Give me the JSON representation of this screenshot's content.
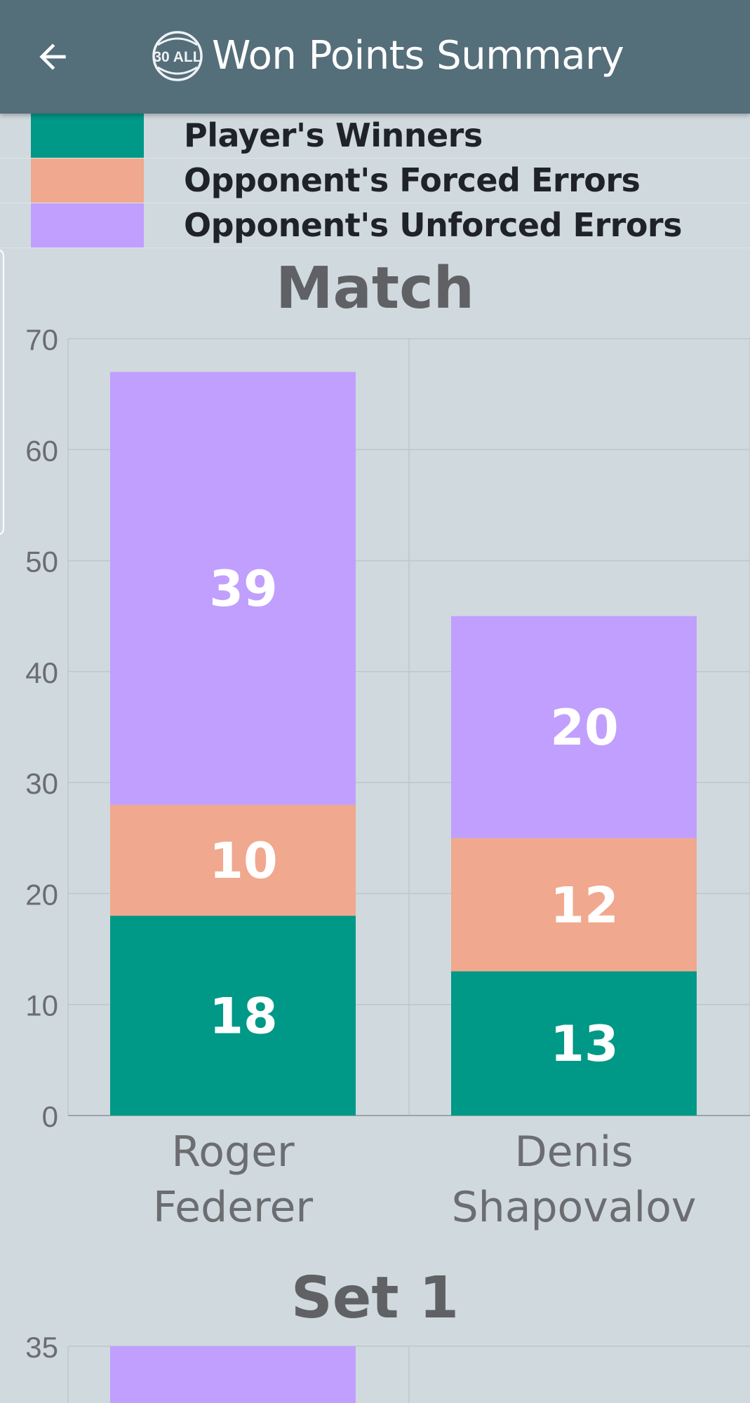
{
  "appbar": {
    "title": "Won Points Summary",
    "back_icon": "arrow-left-icon",
    "logo_text": "30 ALL"
  },
  "colors": {
    "appbar": "#546e7a",
    "background": "#d0d9de",
    "winners": "#009886",
    "forced": "#f0a88e",
    "unforced": "#c09ffe"
  },
  "legend": [
    {
      "label": "Player's Winners",
      "color": "#009886"
    },
    {
      "label": "Opponent's Forced Errors",
      "color": "#f0a88e"
    },
    {
      "label": "Opponent's Unforced Errors",
      "color": "#c09ffe"
    }
  ],
  "chart_data": [
    {
      "type": "bar",
      "stacked": true,
      "title": "Match",
      "categories": [
        [
          "Roger",
          "Federer"
        ],
        [
          "Denis",
          "Shapovalov"
        ]
      ],
      "series": [
        {
          "name": "Player's Winners",
          "color": "#009886",
          "values": [
            18,
            13
          ]
        },
        {
          "name": "Opponent's Forced Errors",
          "color": "#f0a88e",
          "values": [
            10,
            12
          ]
        },
        {
          "name": "Opponent's Unforced Errors",
          "color": "#c09ffe",
          "values": [
            39,
            20
          ]
        }
      ],
      "ylim": [
        0,
        70
      ],
      "yticks": [
        0,
        10,
        20,
        30,
        40,
        50,
        60,
        70
      ],
      "grid": true
    },
    {
      "type": "bar",
      "stacked": true,
      "title": "Set 1",
      "ylim": [
        0,
        35
      ],
      "yticks": [
        35
      ],
      "visible_partial": true
    }
  ]
}
